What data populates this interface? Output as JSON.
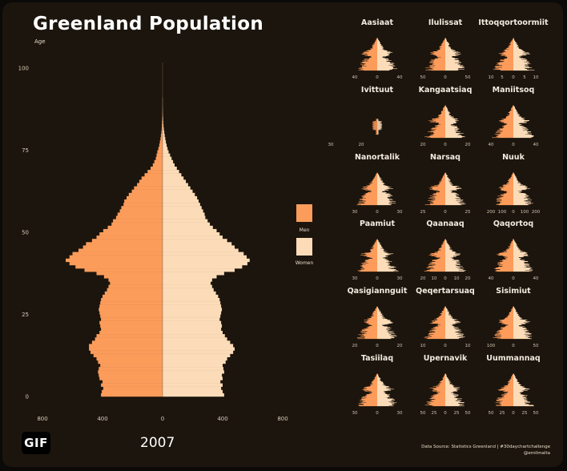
{
  "title": "Greenland Population",
  "age_label": "Age",
  "year": "2007",
  "gif_label": "GIF",
  "credits": {
    "source": "Data Source: Statistics Greenland | #30daychartchallenge",
    "handle": "@emilmalta"
  },
  "colors": {
    "men": "#fc9c5b",
    "women": "#fcdcb8",
    "background": "#1c150d",
    "text": "#ffffff"
  },
  "chart_data": [
    {
      "type": "bar",
      "orientation": "horizontal-mirrored",
      "title": "Greenland Population",
      "ylabel": "Age",
      "ylim": [
        0,
        100
      ],
      "xlim": [
        -800,
        800
      ],
      "xticks": [
        -800,
        -400,
        0,
        400,
        800
      ],
      "xtick_labels": [
        "800",
        "400",
        "0",
        "400",
        "800"
      ],
      "yticks": [
        0,
        25,
        50,
        75,
        100
      ],
      "legend": {
        "placement": "right",
        "entries": [
          "Men",
          "Women"
        ]
      },
      "series": [
        {
          "name": "Men",
          "color": "#fc9c5b",
          "values": [
            410,
            405,
            395,
            410,
            400,
            420,
            425,
            430,
            425,
            415,
            430,
            440,
            460,
            480,
            490,
            490,
            470,
            450,
            440,
            420,
            410,
            415,
            420,
            410,
            415,
            420,
            425,
            420,
            415,
            410,
            400,
            385,
            370,
            360,
            350,
            360,
            390,
            440,
            520,
            580,
            620,
            645,
            620,
            600,
            560,
            530,
            510,
            470,
            440,
            420,
            395,
            365,
            340,
            330,
            310,
            300,
            285,
            275,
            260,
            255,
            240,
            225,
            205,
            190,
            170,
            155,
            140,
            120,
            100,
            80,
            65,
            55,
            45,
            40,
            35,
            28,
            22,
            18,
            14,
            11,
            8,
            6,
            5,
            4,
            3,
            2,
            2,
            1,
            1,
            1,
            1,
            0,
            0,
            0,
            0,
            0,
            0,
            0,
            0,
            0
          ]
        },
        {
          "name": "Women",
          "color": "#fcdcb8",
          "values": [
            410,
            400,
            390,
            400,
            385,
            400,
            395,
            410,
            405,
            400,
            420,
            430,
            450,
            470,
            480,
            470,
            450,
            430,
            415,
            400,
            390,
            395,
            390,
            380,
            385,
            390,
            395,
            390,
            385,
            380,
            370,
            355,
            340,
            330,
            320,
            330,
            360,
            410,
            480,
            530,
            565,
            580,
            560,
            540,
            505,
            480,
            460,
            430,
            400,
            380,
            360,
            335,
            315,
            300,
            285,
            280,
            270,
            260,
            250,
            240,
            230,
            215,
            200,
            185,
            170,
            155,
            140,
            125,
            110,
            95,
            80,
            70,
            60,
            50,
            40,
            33,
            27,
            22,
            18,
            14,
            11,
            8,
            6,
            5,
            4,
            3,
            2,
            2,
            1,
            1,
            1,
            0,
            0,
            0,
            0,
            0,
            0,
            0,
            0,
            0
          ]
        }
      ]
    },
    {
      "type": "bar",
      "orientation": "horizontal-mirrored",
      "small_multiples": [
        {
          "title": "Aasiaat",
          "ticks": [
            "40",
            "0",
            "40"
          ],
          "max": 50
        },
        {
          "title": "Ilulissat",
          "ticks": [
            "50",
            "0",
            "50"
          ],
          "max": 60
        },
        {
          "title": "Ittoqqortoormiit",
          "ticks": [
            "10",
            "5",
            "0",
            "5",
            "10"
          ],
          "max": 12
        },
        {
          "title": "Ivittuut",
          "ticks": [
            "30",
            "20"
          ],
          "max": 30,
          "compact": true
        },
        {
          "title": "Kangaatsiaq",
          "ticks": [
            "20",
            "0",
            "20"
          ],
          "max": 22
        },
        {
          "title": "Maniitsoq",
          "ticks": [
            "40",
            "0",
            "40"
          ],
          "max": 45
        },
        {
          "title": "Nanortalik",
          "ticks": [
            "30",
            "0",
            "30"
          ],
          "max": 35
        },
        {
          "title": "Narsaq",
          "ticks": [
            "25",
            "0",
            "25"
          ],
          "max": 28
        },
        {
          "title": "Nuuk",
          "ticks": [
            "200",
            "100",
            "0",
            "100",
            "200"
          ],
          "max": 210
        },
        {
          "title": "Paamiut",
          "ticks": [
            "30",
            "0",
            "30"
          ],
          "max": 32
        },
        {
          "title": "Qaanaaq",
          "ticks": [
            "20",
            "10",
            "0",
            "10",
            "20"
          ],
          "max": 22
        },
        {
          "title": "Qaqortoq",
          "ticks": [
            "40",
            "0",
            "40"
          ],
          "max": 45
        },
        {
          "title": "Qasigiannguit",
          "ticks": [
            "20",
            "0",
            "20"
          ],
          "max": 22
        },
        {
          "title": "Qeqertarsuaq",
          "ticks": [
            "10",
            "0",
            "10"
          ],
          "max": 12
        },
        {
          "title": "Sisimiut",
          "ticks": [
            "100",
            "0",
            "50"
          ],
          "max": 100
        },
        {
          "title": "Tasiilaq",
          "ticks": [
            "30",
            "0",
            "30"
          ],
          "max": 35
        },
        {
          "title": "Upernavik",
          "ticks": [
            "50",
            "25",
            "0",
            "25",
            "50"
          ],
          "max": 55
        },
        {
          "title": "Uummannaq",
          "ticks": [
            "50",
            "25",
            "0",
            "25",
            "50"
          ],
          "max": 55
        }
      ]
    }
  ]
}
